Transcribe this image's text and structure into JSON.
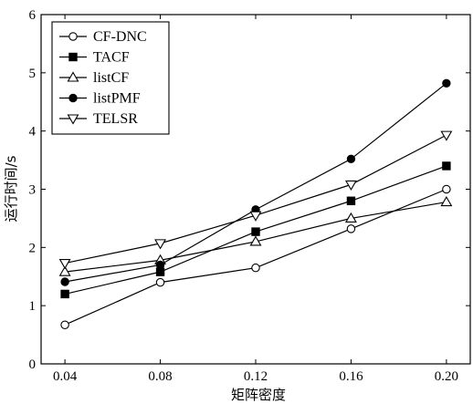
{
  "chart_data": {
    "type": "line",
    "xlabel": "矩阵密度",
    "ylabel": "运行时间/s",
    "x": [
      0.04,
      0.08,
      0.12,
      0.16,
      0.2
    ],
    "x_tick_labels": [
      "0.04",
      "0.08",
      "0.12",
      "0.16",
      "0.20"
    ],
    "xlim": [
      0.03,
      0.21
    ],
    "ylim": [
      0,
      6
    ],
    "y_ticks": [
      0,
      1,
      2,
      3,
      4,
      5,
      6
    ],
    "y_tick_labels": [
      "0",
      "1",
      "2",
      "3",
      "4",
      "5",
      "6"
    ],
    "grid": false,
    "legend_position": "top-left",
    "series": [
      {
        "name": "CF-DNC",
        "marker": "circle-open",
        "values": [
          0.67,
          1.4,
          1.65,
          2.32,
          3.0
        ]
      },
      {
        "name": "TACF",
        "marker": "square-filled",
        "values": [
          1.2,
          1.58,
          2.27,
          2.8,
          3.4
        ]
      },
      {
        "name": "listCF",
        "marker": "triangle-up-open",
        "values": [
          1.58,
          1.78,
          2.1,
          2.5,
          2.78
        ]
      },
      {
        "name": "listPMF",
        "marker": "circle-filled",
        "values": [
          1.41,
          1.7,
          2.65,
          3.52,
          4.82
        ]
      },
      {
        "name": "TELSR",
        "marker": "triangle-down-open",
        "values": [
          1.73,
          2.07,
          2.55,
          3.08,
          3.93
        ]
      }
    ]
  }
}
